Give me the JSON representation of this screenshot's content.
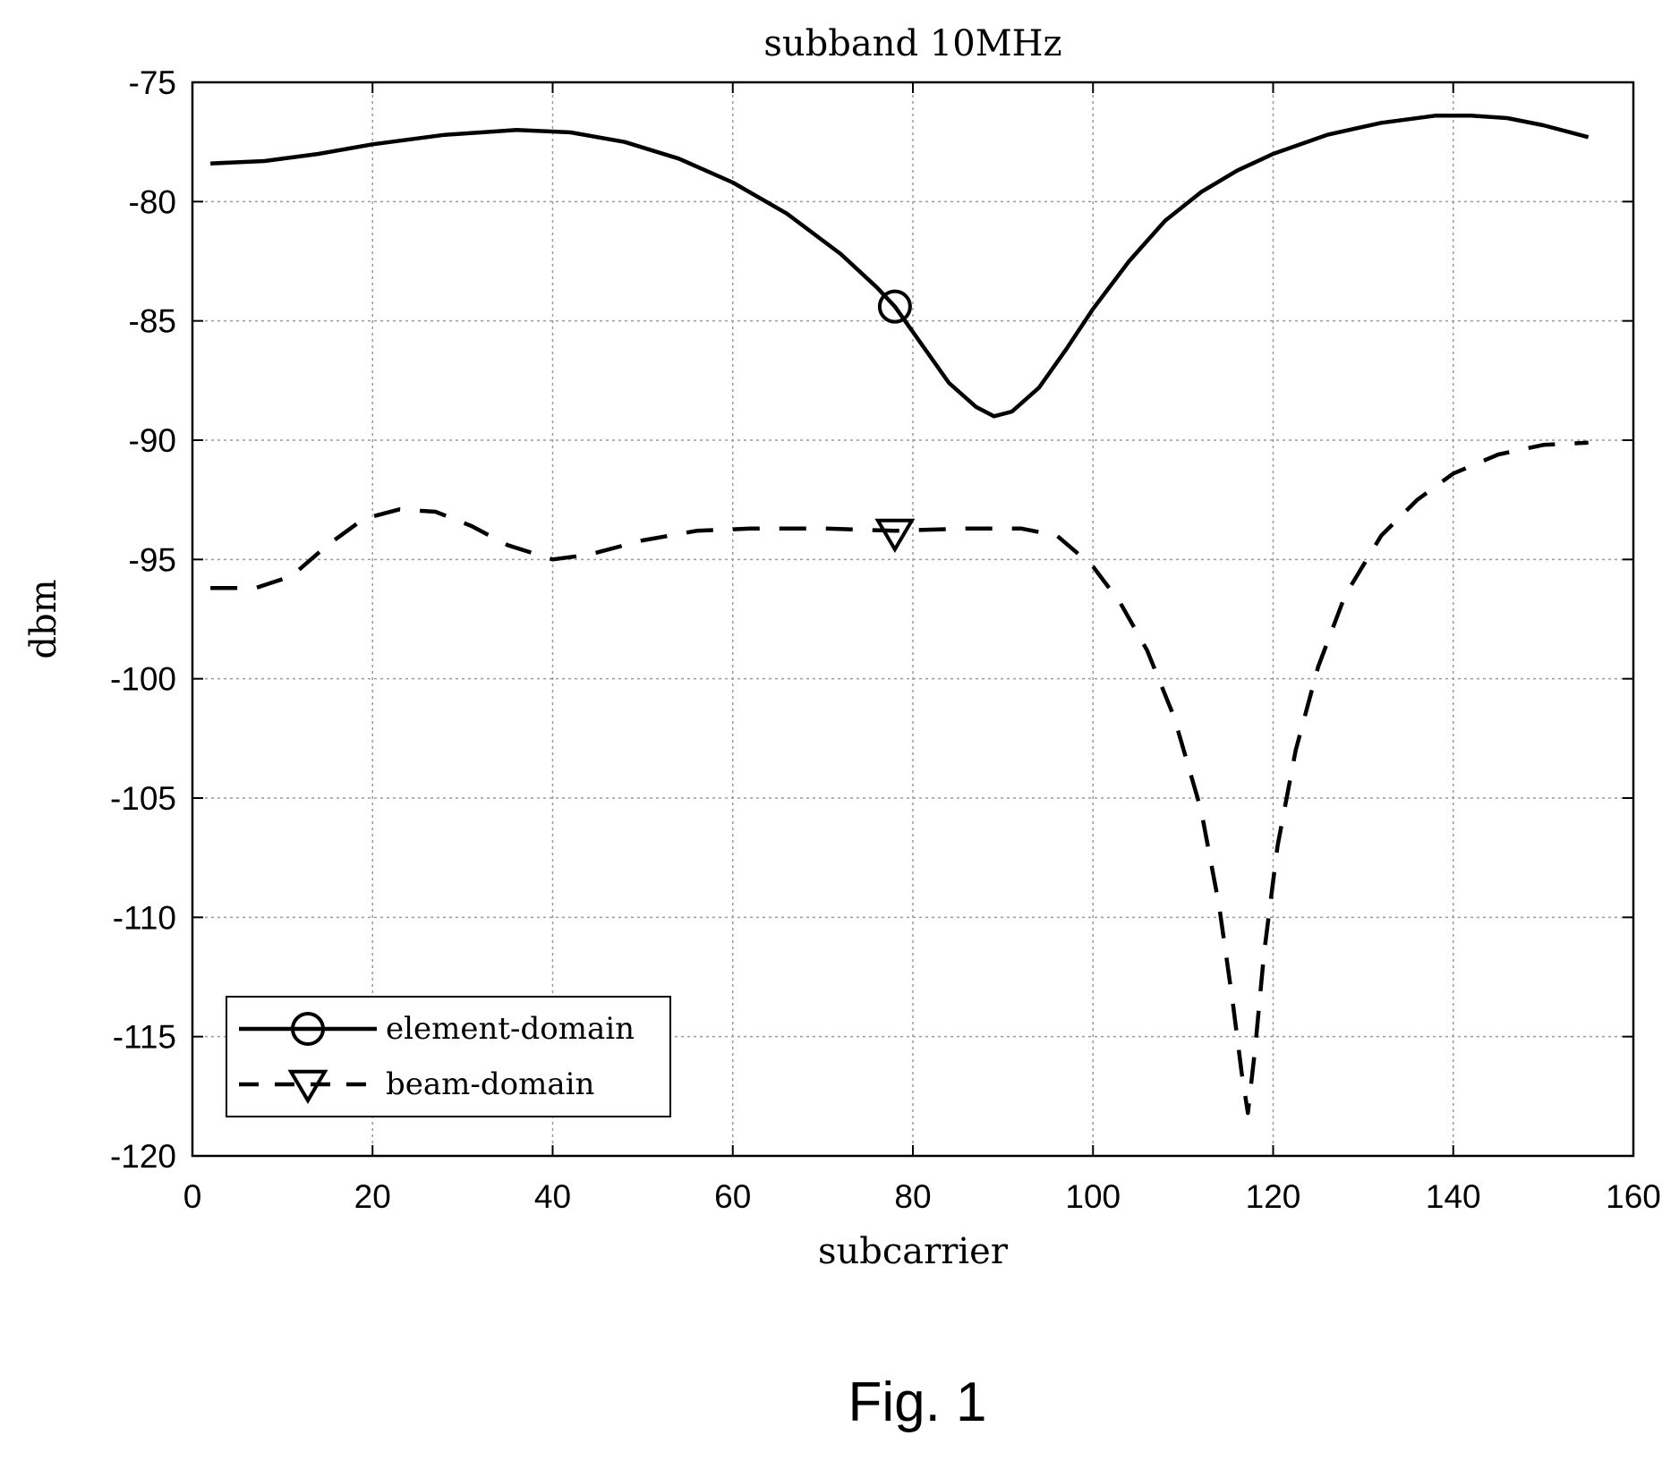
{
  "figure": {
    "caption": "Fig. 1"
  },
  "chart_data": {
    "type": "line",
    "title": "subband 10MHz",
    "xlabel": "subcarrier",
    "ylabel": "dbm",
    "xlim": [
      0,
      160
    ],
    "ylim": [
      -120,
      -75
    ],
    "xticks": [
      0,
      20,
      40,
      60,
      80,
      100,
      120,
      140,
      160
    ],
    "yticks": [
      -75,
      -80,
      -85,
      -90,
      -95,
      -100,
      -105,
      -110,
      -115,
      -120
    ],
    "grid": true,
    "legend_position": "bottom-left",
    "series": [
      {
        "name": "element-domain",
        "style": "solid",
        "marker": "circle",
        "color": "#000000",
        "marker_at": [
          78,
          -84.4
        ],
        "points": [
          [
            2,
            -78.4
          ],
          [
            8,
            -78.3
          ],
          [
            14,
            -78.0
          ],
          [
            20,
            -77.6
          ],
          [
            28,
            -77.2
          ],
          [
            36,
            -77.0
          ],
          [
            42,
            -77.1
          ],
          [
            48,
            -77.5
          ],
          [
            54,
            -78.2
          ],
          [
            60,
            -79.2
          ],
          [
            66,
            -80.5
          ],
          [
            72,
            -82.2
          ],
          [
            76,
            -83.6
          ],
          [
            78,
            -84.4
          ],
          [
            81,
            -86.0
          ],
          [
            84,
            -87.6
          ],
          [
            87,
            -88.6
          ],
          [
            89,
            -89.0
          ],
          [
            91,
            -88.8
          ],
          [
            94,
            -87.8
          ],
          [
            97,
            -86.2
          ],
          [
            100,
            -84.5
          ],
          [
            104,
            -82.5
          ],
          [
            108,
            -80.8
          ],
          [
            112,
            -79.6
          ],
          [
            116,
            -78.7
          ],
          [
            120,
            -78.0
          ],
          [
            126,
            -77.2
          ],
          [
            132,
            -76.7
          ],
          [
            138,
            -76.4
          ],
          [
            142,
            -76.4
          ],
          [
            146,
            -76.5
          ],
          [
            150,
            -76.8
          ],
          [
            155,
            -77.3
          ]
        ]
      },
      {
        "name": "beam-domain",
        "style": "dashed",
        "marker": "triangle-down",
        "color": "#000000",
        "marker_at": [
          78,
          -93.9
        ],
        "points": [
          [
            2,
            -96.2
          ],
          [
            7,
            -96.2
          ],
          [
            11,
            -95.7
          ],
          [
            15,
            -94.4
          ],
          [
            19,
            -93.3
          ],
          [
            23,
            -92.9
          ],
          [
            27,
            -93.0
          ],
          [
            31,
            -93.6
          ],
          [
            35,
            -94.4
          ],
          [
            40,
            -95.0
          ],
          [
            44,
            -94.8
          ],
          [
            50,
            -94.2
          ],
          [
            56,
            -93.8
          ],
          [
            62,
            -93.7
          ],
          [
            70,
            -93.7
          ],
          [
            78,
            -93.8
          ],
          [
            86,
            -93.7
          ],
          [
            92,
            -93.7
          ],
          [
            96,
            -94.0
          ],
          [
            100,
            -95.3
          ],
          [
            103,
            -96.8
          ],
          [
            106,
            -98.8
          ],
          [
            109,
            -101.6
          ],
          [
            112,
            -105.5
          ],
          [
            114,
            -109.5
          ],
          [
            115.5,
            -113.5
          ],
          [
            116.5,
            -116.5
          ],
          [
            117.2,
            -118.2
          ],
          [
            118,
            -115.5
          ],
          [
            119,
            -111.5
          ],
          [
            120.5,
            -107.0
          ],
          [
            122.5,
            -103.0
          ],
          [
            125,
            -99.5
          ],
          [
            128,
            -96.5
          ],
          [
            132,
            -94.0
          ],
          [
            136,
            -92.5
          ],
          [
            140,
            -91.4
          ],
          [
            145,
            -90.6
          ],
          [
            150,
            -90.2
          ],
          [
            155,
            -90.1
          ]
        ]
      }
    ]
  }
}
